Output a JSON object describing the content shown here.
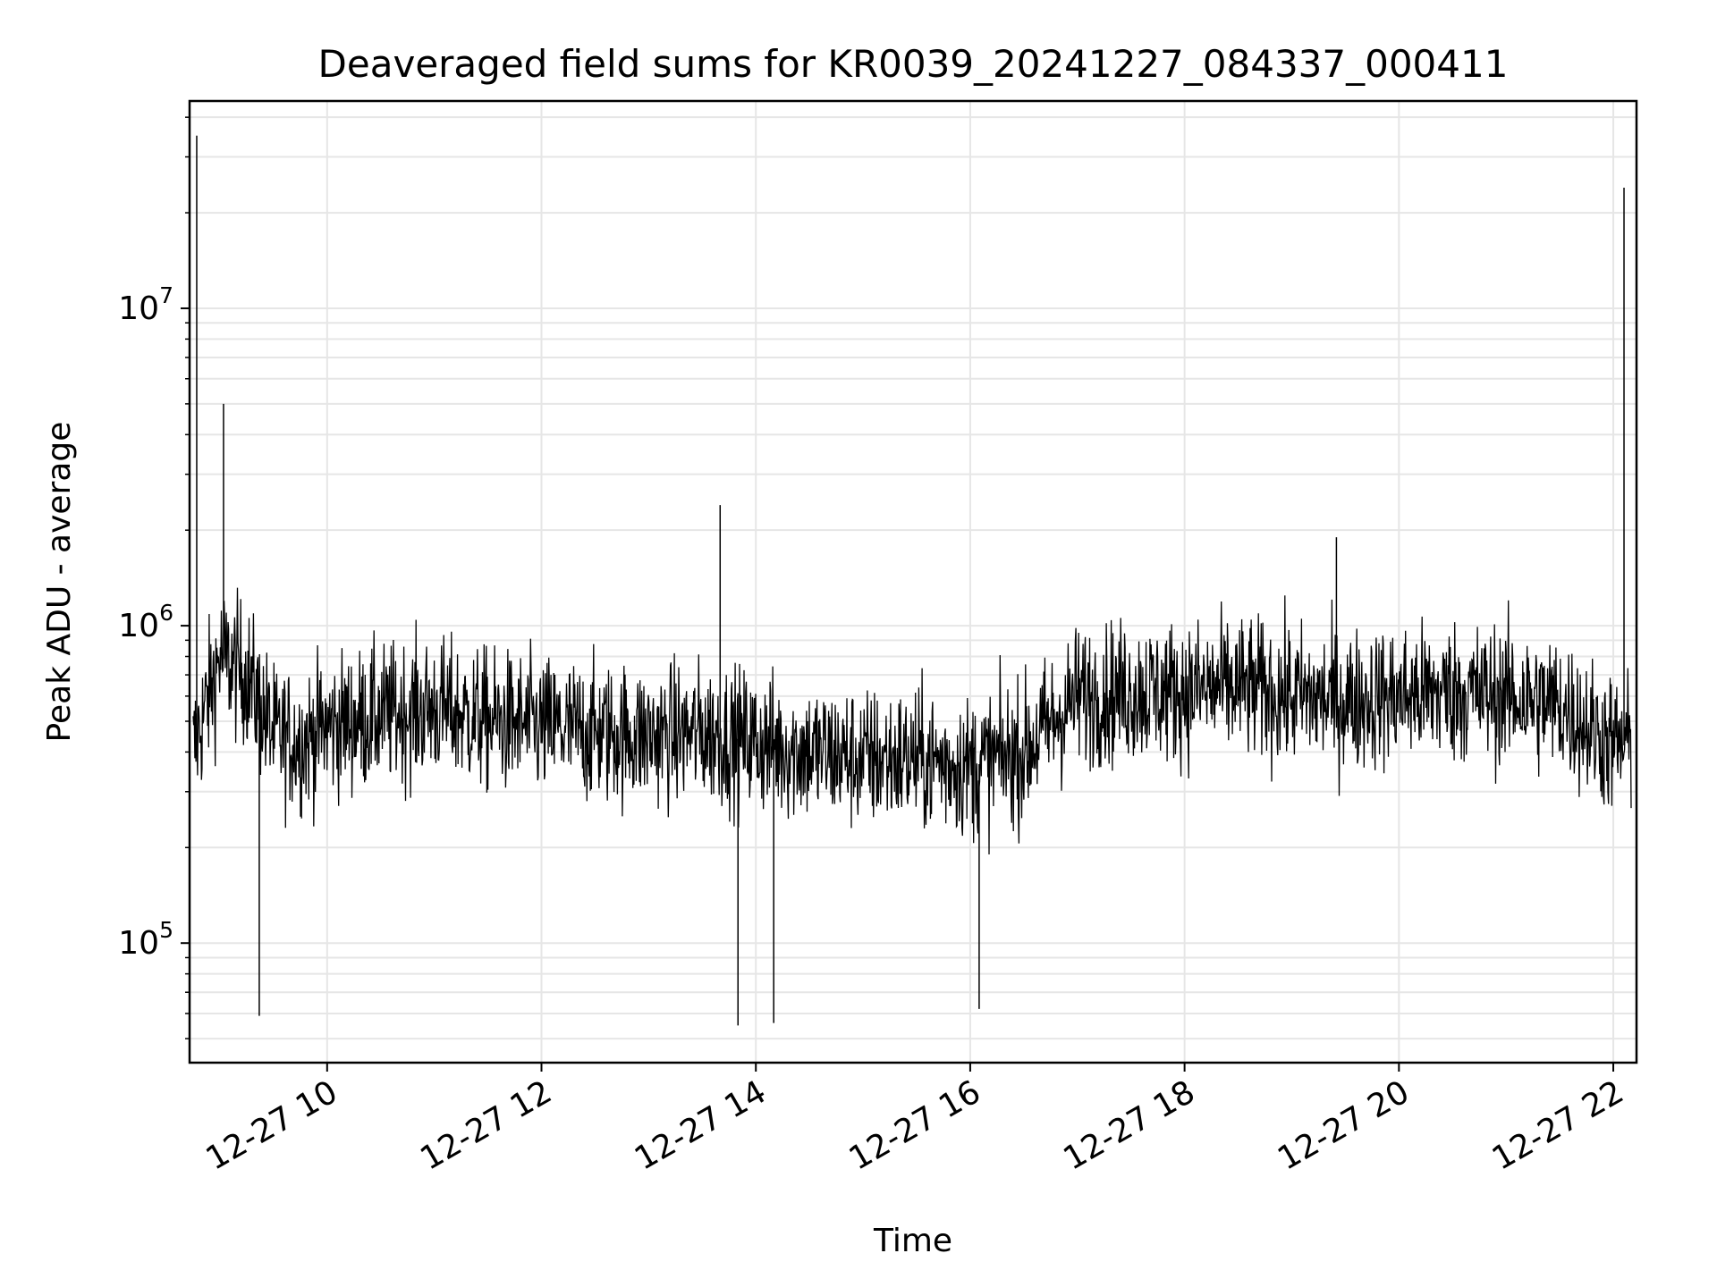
{
  "chart_data": {
    "type": "line",
    "title": "Deaveraged field sums for KR0039_20241227_084337_000411",
    "xlabel": "Time",
    "ylabel": "Peak ADU - average",
    "yscale": "log",
    "xlim": [
      "2024-12-27 08:43",
      "2024-12-27 22:13"
    ],
    "ylim": [
      42000,
      45000000
    ],
    "grid": true,
    "x_ticks": [
      {
        "value": "2024-12-27 10:00",
        "label": "12-27 10"
      },
      {
        "value": "2024-12-27 12:00",
        "label": "12-27 12"
      },
      {
        "value": "2024-12-27 14:00",
        "label": "12-27 14"
      },
      {
        "value": "2024-12-27 16:00",
        "label": "12-27 16"
      },
      {
        "value": "2024-12-27 18:00",
        "label": "12-27 18"
      },
      {
        "value": "2024-12-27 20:00",
        "label": "12-27 20"
      },
      {
        "value": "2024-12-27 22:00",
        "label": "12-27 22"
      }
    ],
    "y_ticks": [
      {
        "value": 100000,
        "base": "10",
        "exp": "5"
      },
      {
        "value": 1000000,
        "base": "10",
        "exp": "6"
      },
      {
        "value": 10000000,
        "base": "10",
        "exp": "7"
      }
    ],
    "series": [
      {
        "color": "#000000",
        "x": [
          "2024-12-27 08:45",
          "2024-12-27 09:00",
          "2024-12-27 09:15",
          "2024-12-27 09:30",
          "2024-12-27 09:45",
          "2024-12-27 10:00",
          "2024-12-27 10:30",
          "2024-12-27 11:00",
          "2024-12-27 11:30",
          "2024-12-27 12:00",
          "2024-12-27 12:30",
          "2024-12-27 13:00",
          "2024-12-27 13:30",
          "2024-12-27 14:00",
          "2024-12-27 14:30",
          "2024-12-27 15:00",
          "2024-12-27 15:30",
          "2024-12-27 16:00",
          "2024-12-27 16:30",
          "2024-12-27 17:00",
          "2024-12-27 17:30",
          "2024-12-27 18:00",
          "2024-12-27 18:30",
          "2024-12-27 19:00",
          "2024-12-27 19:30",
          "2024-12-27 20:00",
          "2024-12-27 20:30",
          "2024-12-27 21:00",
          "2024-12-27 21:30",
          "2024-12-27 22:00",
          "2024-12-27 22:10"
        ],
        "y": [
          400000,
          800000,
          700000,
          450000,
          430000,
          480000,
          520000,
          550000,
          500000,
          480000,
          460000,
          450000,
          460000,
          430000,
          400000,
          380000,
          380000,
          360000,
          400000,
          600000,
          620000,
          620000,
          640000,
          600000,
          580000,
          600000,
          620000,
          600000,
          560000,
          420000,
          420000
        ],
        "spikes": [
          {
            "x": "2024-12-27 08:47",
            "y": 35000000
          },
          {
            "x": "2024-12-27 09:02",
            "y": 5000000
          },
          {
            "x": "2024-12-27 13:40",
            "y": 2400000
          },
          {
            "x": "2024-12-27 19:25",
            "y": 1900000
          },
          {
            "x": "2024-12-27 22:06",
            "y": 24000000
          }
        ],
        "dips": [
          {
            "x": "2024-12-27 09:22",
            "y": 59000
          },
          {
            "x": "2024-12-27 13:50",
            "y": 55000
          },
          {
            "x": "2024-12-27 14:10",
            "y": 56000
          },
          {
            "x": "2024-12-27 16:05",
            "y": 62000
          }
        ]
      }
    ]
  }
}
